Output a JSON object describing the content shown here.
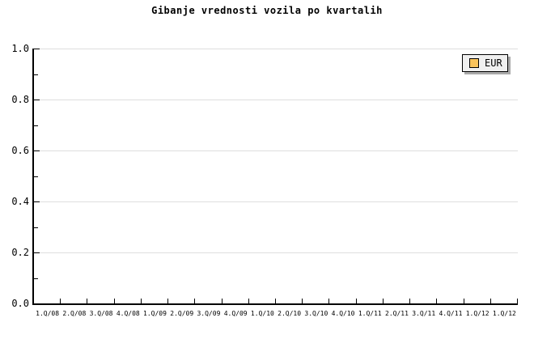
{
  "chart_data": {
    "type": "line",
    "title": "Gibanje vrednosti vozila po kvartalih",
    "categories": [
      "1.Q/08",
      "2.Q/08",
      "3.Q/08",
      "4.Q/08",
      "1.Q/09",
      "2.Q/09",
      "3.Q/09",
      "4.Q/09",
      "1.Q/10",
      "2.Q/10",
      "3.Q/10",
      "4.Q/10",
      "1.Q/11",
      "2.Q/11",
      "3.Q/11",
      "4.Q/11",
      "1.Q/12",
      "1.Q/12"
    ],
    "series": [
      {
        "name": "EUR",
        "color": "#fac45c",
        "values": []
      }
    ],
    "xlabel": "",
    "ylabel": "",
    "ylim": [
      0.0,
      1.0
    ],
    "y_tick_labels": [
      "1.0",
      "0.8",
      "0.6",
      "0.4",
      "0.2",
      "0.0"
    ],
    "y_major_step": 0.2,
    "y_minor_step": 0.1,
    "grid": "horizontal major gridlines only",
    "legend_position": "top-right",
    "plot_empty": true
  },
  "legend": {
    "items": [
      {
        "label": "EUR",
        "swatch_color": "#fac45c"
      }
    ]
  },
  "colors": {
    "background": "#ffffff",
    "axis": "#000000",
    "gridline": "#dedede",
    "legend_background": "#f0f0f0",
    "legend_border": "#000000",
    "legend_shadow": "#a9a9a9",
    "series_eur": "#fac45c",
    "text": "#000000"
  }
}
